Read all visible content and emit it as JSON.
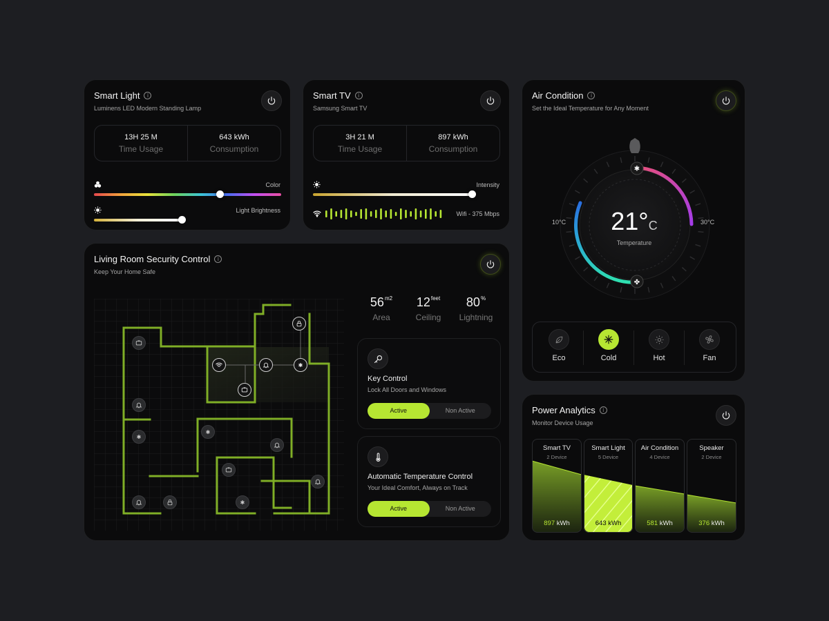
{
  "smart_light": {
    "title": "Smart Light",
    "subtitle": "Luminens LED Modern Standing Lamp",
    "time_value": "13H 25 M",
    "time_label": "Time Usage",
    "consumption_value": "643 kWh",
    "consumption_label": "Consumption",
    "color_label": "Color",
    "color_level": 0.67,
    "brightness_label": "Light Brightness",
    "brightness_level": 0.47
  },
  "smart_tv": {
    "title": "Smart TV",
    "subtitle": "Samsung Smart TV",
    "time_value": "3H 21 M",
    "time_label": "Time Usage",
    "consumption_value": "897 kWh",
    "consumption_label": "Consumption",
    "intensity_label": "Intensity",
    "intensity_level": 0.85,
    "wifi_label": "Wifi - 375 Mbps"
  },
  "air_condition": {
    "title": "Air Condition",
    "subtitle": "Set the Ideal Temperature for Any Moment",
    "temperature_value": "21°",
    "temperature_unit": "C",
    "temperature_label": "Temperature",
    "min_label": "10°C",
    "max_label": "30°C",
    "modes": [
      {
        "label": "Eco",
        "icon": "leaf-icon",
        "active": false
      },
      {
        "label": "Cold",
        "icon": "snowflake-icon",
        "active": true
      },
      {
        "label": "Hot",
        "icon": "sun-icon",
        "active": false
      },
      {
        "label": "Fan",
        "icon": "fan-icon",
        "active": false
      }
    ]
  },
  "security": {
    "title": "Living Room Security Control",
    "subtitle": "Keep Your Home Safe",
    "area_value": "56",
    "area_unit": "m2",
    "area_label": "Area",
    "ceiling_value": "12",
    "ceiling_unit": "feet",
    "ceiling_label": "Ceiling",
    "lighting_value": "80",
    "lighting_unit": "%",
    "lighting_label": "Lightning",
    "key_control": {
      "title": "Key Control",
      "subtitle": "Lock All Doors and Windows",
      "active_label": "Active",
      "inactive_label": "Non Active"
    },
    "temp_control": {
      "title": "Automatic Temperature Control",
      "subtitle": "Your Ideal Comfort, Always on Track",
      "active_label": "Active",
      "inactive_label": "Non Active"
    }
  },
  "power_analytics": {
    "title": "Power Analytics",
    "subtitle": "Monitor Device Usage",
    "unit": "kWh",
    "devices": [
      {
        "name": "Smart TV",
        "count": "2 Device",
        "value": "897"
      },
      {
        "name": "Smart Light",
        "count": "5 Device",
        "value": "643"
      },
      {
        "name": "Air Condition",
        "count": "4 Device",
        "value": "581"
      },
      {
        "name": "Speaker",
        "count": "2 Device",
        "value": "376"
      }
    ]
  },
  "colors": {
    "accent": "#b6e632",
    "card": "#0b0b0c",
    "background": "#1d1e22"
  }
}
